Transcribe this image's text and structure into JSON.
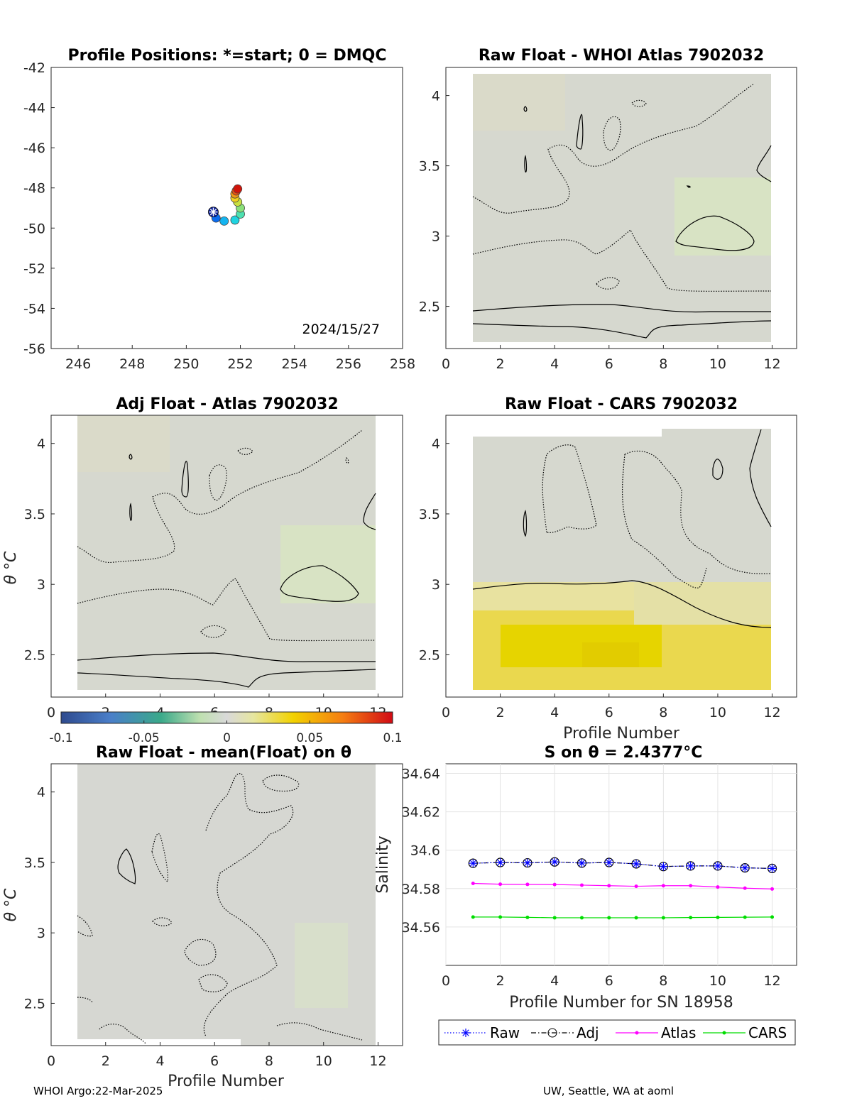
{
  "footer": {
    "left": "WHOI Argo:22-Mar-2025",
    "right": "UW, Seattle, WA at aoml"
  },
  "colorbar": {
    "ticks": [
      "-0.1",
      "-0.05",
      "0",
      "0.05",
      "0.1"
    ],
    "range": [
      -0.1,
      0.1
    ]
  },
  "chart_data": [
    {
      "type": "scatter",
      "title": "Profile Positions: *=start; 0 = DMQC",
      "annotation": "2024/15/27",
      "xlim": [
        245,
        258
      ],
      "ylim": [
        -56,
        -42
      ],
      "xticks": [
        "246",
        "248",
        "250",
        "252",
        "254",
        "256",
        "258"
      ],
      "yticks": [
        "-42",
        "-44",
        "-46",
        "-48",
        "-50",
        "-52",
        "-54",
        "-56"
      ],
      "start_marker": "asterisk",
      "points": {
        "x": [
          251.0,
          251.1,
          251.4,
          251.8,
          252.0,
          252.0,
          251.9,
          251.8,
          251.8,
          251.85,
          251.9
        ],
        "y": [
          -49.2,
          -49.5,
          -49.65,
          -49.6,
          -49.3,
          -49.0,
          -48.7,
          -48.5,
          -48.3,
          -48.15,
          -48.05
        ]
      },
      "colormap": "jet"
    },
    {
      "type": "heatmap",
      "title": "Raw Float - WHOI Atlas  7902032",
      "xlabel": "",
      "ylabel": "",
      "xlim": [
        0,
        12.9
      ],
      "ylim": [
        2.2,
        4.2
      ],
      "xticks": [
        "0",
        "2",
        "4",
        "6",
        "8",
        "10",
        "12"
      ],
      "yticks": [
        "2.5",
        "3",
        "3.5",
        "4"
      ],
      "tint": "light-green"
    },
    {
      "type": "heatmap",
      "title": "Adj Float - Atlas  7902032",
      "xlabel": "",
      "ylabel": "θ °C",
      "xlim": [
        0,
        12.9
      ],
      "ylim": [
        2.2,
        4.2
      ],
      "xticks": [
        "0",
        "2",
        "4",
        "6",
        "8",
        "10",
        "12"
      ],
      "yticks": [
        "2.5",
        "3",
        "3.5",
        "4"
      ],
      "tint": "light-green"
    },
    {
      "type": "heatmap",
      "title": "Raw Float - CARS  7902032",
      "xlabel": "Profile Number",
      "ylabel": "",
      "xlim": [
        0,
        12.9
      ],
      "ylim": [
        2.2,
        4.2
      ],
      "xticks": [
        "0",
        "2",
        "4",
        "6",
        "8",
        "10",
        "12"
      ],
      "yticks": [
        "2.5",
        "3",
        "3.5",
        "4"
      ],
      "tint": "yellow-lower"
    },
    {
      "type": "heatmap",
      "title": "Raw Float - mean(Float) on θ",
      "xlabel": "Profile Number",
      "ylabel": "θ °C",
      "xlim": [
        0,
        12.9
      ],
      "ylim": [
        2.2,
        4.2
      ],
      "xticks": [
        "0",
        "2",
        "4",
        "6",
        "8",
        "10",
        "12"
      ],
      "yticks": [
        "2.5",
        "3",
        "3.5",
        "4"
      ],
      "tint": "grey"
    },
    {
      "type": "line",
      "title": "S on θ = 2.4377°C",
      "xlabel": "Profile Number for SN 18958",
      "ylabel": "Salinity",
      "xlim": [
        0,
        12.9
      ],
      "ylim": [
        34.54,
        34.645
      ],
      "grid": true,
      "xticks": [
        "0",
        "2",
        "4",
        "6",
        "8",
        "10",
        "12"
      ],
      "yticks": [
        "34.56",
        "34.58",
        "34.6",
        "34.62",
        "34.64"
      ],
      "x": [
        1,
        2,
        3,
        4,
        5,
        6,
        7,
        8,
        9,
        10,
        11,
        12
      ],
      "legend_position": "bottom",
      "series": [
        {
          "name": "Raw",
          "color": "#0000ff",
          "marker": "asterisk",
          "style": "dotted",
          "values": [
            34.5932,
            34.5936,
            34.5934,
            34.5939,
            34.5933,
            34.5936,
            34.5929,
            34.5915,
            34.5918,
            34.5918,
            34.5908,
            34.5905
          ]
        },
        {
          "name": "Adj",
          "color": "#000000",
          "marker": "circle",
          "style": "dashdot",
          "values": [
            34.5932,
            34.5936,
            34.5934,
            34.5939,
            34.5933,
            34.5936,
            34.5929,
            34.5915,
            34.5918,
            34.5918,
            34.5908,
            34.5905
          ]
        },
        {
          "name": "Atlas",
          "color": "#ff00ff",
          "marker": "dot",
          "style": "solid",
          "values": [
            34.5827,
            34.5823,
            34.5822,
            34.5821,
            34.5818,
            34.5815,
            34.5812,
            34.5815,
            34.5815,
            34.5808,
            34.5802,
            34.5798
          ]
        },
        {
          "name": "CARS",
          "color": "#00dd00",
          "marker": "dot",
          "style": "solid",
          "values": [
            34.5652,
            34.5652,
            34.565,
            34.5648,
            34.5648,
            34.5648,
            34.5648,
            34.5648,
            34.5649,
            34.565,
            34.5651,
            34.5652
          ]
        }
      ]
    }
  ]
}
